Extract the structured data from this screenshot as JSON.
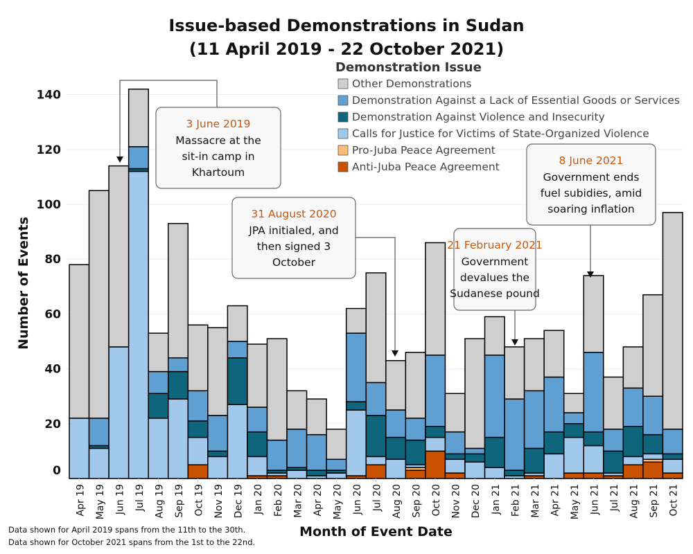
{
  "chart_data": {
    "type": "bar",
    "stacked": true,
    "title_line1": "Issue-based Demonstrations in Sudan",
    "title_line2": "(11 April 2019 - 22 October 2021)",
    "xlabel": "Month of Event Date",
    "ylabel": "Number of Events",
    "ylim": [
      0,
      150
    ],
    "yticks": [
      0,
      20,
      40,
      60,
      80,
      100,
      120,
      140
    ],
    "grid": true,
    "legend_title": "Demonstration Issue",
    "legend_placement": "top-right",
    "categories": [
      "Apr 19",
      "May 19",
      "Jun 19",
      "Jul 19",
      "Aug 19",
      "Sep 19",
      "Oct 19",
      "Nov 19",
      "Dec 19",
      "Jan 20",
      "Feb 20",
      "Mar 20",
      "Apr 20",
      "May 20",
      "Jun 20",
      "Jul 20",
      "Aug 20",
      "Sep 20",
      "Oct 20",
      "Nov 20",
      "Dec 20",
      "Jan 21",
      "Feb 21",
      "Mar 21",
      "Apr 21",
      "May 21",
      "Jun 21",
      "Jul 21",
      "Aug 21",
      "Sep 21",
      "Oct 21"
    ],
    "series": [
      {
        "name": "Anti-Juba Peace Agreement",
        "color": "#c85200",
        "values": [
          0,
          0,
          0,
          0,
          0,
          0,
          5,
          0,
          0,
          1,
          1,
          0,
          0,
          0,
          1,
          5,
          0,
          3,
          10,
          2,
          0,
          0,
          0,
          1,
          0,
          2,
          2,
          1,
          5,
          6,
          2
        ]
      },
      {
        "name": "Pro-Juba Peace Agreement",
        "color": "#ffbc79",
        "values": [
          0,
          0,
          0,
          0,
          0,
          0,
          0,
          0,
          0,
          0,
          0,
          0,
          0,
          0,
          0,
          0,
          0,
          1,
          0,
          0,
          0,
          0,
          0,
          0,
          0,
          0,
          0,
          0,
          0,
          1,
          0
        ]
      },
      {
        "name": "Calls for Justice for Victims of State-Organized Violence",
        "color": "#a2c8ec",
        "values": [
          22,
          11,
          48,
          112,
          22,
          29,
          10,
          8,
          27,
          7,
          1,
          3,
          1,
          2,
          24,
          3,
          7,
          1,
          5,
          5,
          6,
          4,
          1,
          1,
          9,
          13,
          10,
          1,
          3,
          2,
          5
        ]
      },
      {
        "name": "Demonstration Against Violence and Insecurity",
        "color": "#0e657c",
        "values": [
          0,
          1,
          0,
          1,
          9,
          10,
          6,
          2,
          17,
          9,
          1,
          1,
          2,
          1,
          3,
          15,
          8,
          9,
          4,
          2,
          3,
          11,
          2,
          9,
          8,
          5,
          5,
          8,
          11,
          7,
          2
        ]
      },
      {
        "name": "Demonstration Against a Lack of Essential Goods or Services",
        "color": "#5f9fd1",
        "values": [
          0,
          10,
          0,
          8,
          8,
          5,
          11,
          13,
          6,
          9,
          11,
          14,
          13,
          4,
          25,
          12,
          10,
          8,
          26,
          8,
          2,
          30,
          26,
          21,
          20,
          4,
          29,
          8,
          14,
          14,
          9
        ]
      },
      {
        "name": "Other Demonstrations",
        "color": "#cfcfcf",
        "values": [
          56,
          83,
          66,
          21,
          14,
          49,
          24,
          32,
          13,
          23,
          37,
          14,
          13,
          11,
          9,
          40,
          18,
          24,
          41,
          14,
          40,
          14,
          19,
          19,
          17,
          7,
          28,
          19,
          15,
          37,
          79
        ]
      }
    ],
    "legend_order": [
      5,
      4,
      3,
      2,
      1,
      0
    ],
    "annotations": [
      {
        "date": "3 June 2019",
        "text": [
          "Massacre at the",
          "sit-in camp in",
          "Khartoum"
        ],
        "target": "Jun 19"
      },
      {
        "date": "31 August 2020",
        "text": [
          "JPA initialed, and",
          "then signed 3",
          "October"
        ],
        "target": "Aug 20"
      },
      {
        "date": "21 February 2021",
        "text": [
          "Government",
          "devalues the",
          "Sudanese pound"
        ],
        "target": "Feb 21"
      },
      {
        "date": "8 June 2021",
        "text": [
          "Government ends",
          "fuel subidies, amid",
          "soaring inflation"
        ],
        "target": "Jun 21"
      }
    ],
    "annotation_date_color": "#c8560b",
    "footnotes": [
      "Data shown for April 2019 spans from the 11th to the 30th.",
      "Data shown for October 2021 spans from the 1st to the 22nd."
    ]
  }
}
